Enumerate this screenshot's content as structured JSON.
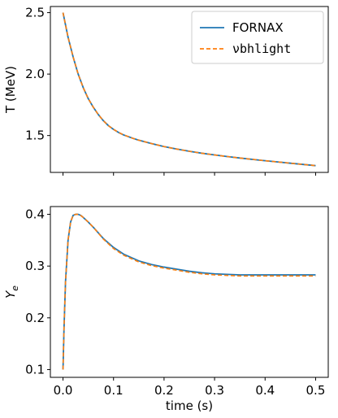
{
  "chart_data": [
    {
      "type": "line",
      "xlabel": "",
      "ylabel": "T (MeV)",
      "xlim": [
        -0.025,
        0.525
      ],
      "ylim": [
        1.2,
        2.55
      ],
      "xticks": [
        0.0,
        0.1,
        0.2,
        0.3,
        0.4,
        0.5
      ],
      "xticklabels": [
        "",
        "",
        "",
        "",
        "",
        ""
      ],
      "yticks": [
        1.5,
        2.0,
        2.5
      ],
      "yticklabels": [
        "1.5",
        "2.0",
        "2.5"
      ],
      "grid": false,
      "legend": "top-right",
      "series": [
        {
          "name": "FORNAX",
          "color": "#1f77b4",
          "style": "solid",
          "x": [
            0.0,
            0.01,
            0.02,
            0.03,
            0.04,
            0.05,
            0.06,
            0.07,
            0.08,
            0.09,
            0.1,
            0.11,
            0.12,
            0.13,
            0.14,
            0.15,
            0.175,
            0.2,
            0.225,
            0.25,
            0.275,
            0.3,
            0.325,
            0.35,
            0.375,
            0.4,
            0.425,
            0.45,
            0.475,
            0.5
          ],
          "y": [
            2.5,
            2.3,
            2.14,
            2.0,
            1.89,
            1.8,
            1.73,
            1.67,
            1.62,
            1.58,
            1.55,
            1.525,
            1.505,
            1.49,
            1.475,
            1.462,
            1.435,
            1.41,
            1.39,
            1.372,
            1.356,
            1.342,
            1.329,
            1.317,
            1.306,
            1.295,
            1.285,
            1.275,
            1.265,
            1.255
          ]
        },
        {
          "name": "νbhlight",
          "color": "#ff7f0e",
          "style": "dashed",
          "x": [
            0.0,
            0.01,
            0.02,
            0.03,
            0.04,
            0.05,
            0.06,
            0.07,
            0.08,
            0.09,
            0.1,
            0.11,
            0.12,
            0.13,
            0.14,
            0.15,
            0.175,
            0.2,
            0.225,
            0.25,
            0.275,
            0.3,
            0.325,
            0.35,
            0.375,
            0.4,
            0.425,
            0.45,
            0.475,
            0.5
          ],
          "y": [
            2.5,
            2.3,
            2.14,
            2.0,
            1.89,
            1.8,
            1.73,
            1.67,
            1.62,
            1.58,
            1.55,
            1.525,
            1.505,
            1.49,
            1.475,
            1.462,
            1.435,
            1.41,
            1.39,
            1.372,
            1.356,
            1.342,
            1.329,
            1.317,
            1.306,
            1.295,
            1.285,
            1.275,
            1.265,
            1.255
          ]
        }
      ]
    },
    {
      "type": "line",
      "xlabel": "time (s)",
      "ylabel": "Y_e",
      "xlim": [
        -0.025,
        0.525
      ],
      "ylim": [
        0.085,
        0.415
      ],
      "xticks": [
        0.0,
        0.1,
        0.2,
        0.3,
        0.4,
        0.5
      ],
      "xticklabels": [
        "0.0",
        "0.1",
        "0.2",
        "0.3",
        "0.4",
        "0.5"
      ],
      "yticks": [
        0.1,
        0.2,
        0.3,
        0.4
      ],
      "yticklabels": [
        "0.1",
        "0.2",
        "0.3",
        "0.4"
      ],
      "grid": false,
      "series": [
        {
          "name": "FORNAX",
          "color": "#1f77b4",
          "style": "solid",
          "x": [
            0.0,
            0.002,
            0.005,
            0.01,
            0.015,
            0.02,
            0.025,
            0.03,
            0.035,
            0.04,
            0.05,
            0.06,
            0.08,
            0.1,
            0.12,
            0.15,
            0.175,
            0.2,
            0.225,
            0.25,
            0.275,
            0.3,
            0.325,
            0.35,
            0.4,
            0.45,
            0.5
          ],
          "y": [
            0.1,
            0.18,
            0.27,
            0.35,
            0.385,
            0.398,
            0.4,
            0.4,
            0.398,
            0.394,
            0.385,
            0.375,
            0.353,
            0.336,
            0.323,
            0.31,
            0.303,
            0.298,
            0.294,
            0.29,
            0.287,
            0.285,
            0.284,
            0.283,
            0.283,
            0.283,
            0.283
          ]
        },
        {
          "name": "νbhlight",
          "color": "#ff7f0e",
          "style": "dashed",
          "x": [
            0.0,
            0.002,
            0.005,
            0.01,
            0.015,
            0.02,
            0.025,
            0.03,
            0.035,
            0.04,
            0.05,
            0.06,
            0.08,
            0.1,
            0.12,
            0.15,
            0.175,
            0.2,
            0.225,
            0.25,
            0.275,
            0.3,
            0.325,
            0.35,
            0.4,
            0.45,
            0.5
          ],
          "y": [
            0.1,
            0.18,
            0.27,
            0.35,
            0.385,
            0.398,
            0.4,
            0.4,
            0.398,
            0.394,
            0.385,
            0.375,
            0.352,
            0.334,
            0.321,
            0.308,
            0.301,
            0.296,
            0.292,
            0.288,
            0.285,
            0.283,
            0.282,
            0.281,
            0.281,
            0.281,
            0.281
          ]
        }
      ]
    }
  ]
}
